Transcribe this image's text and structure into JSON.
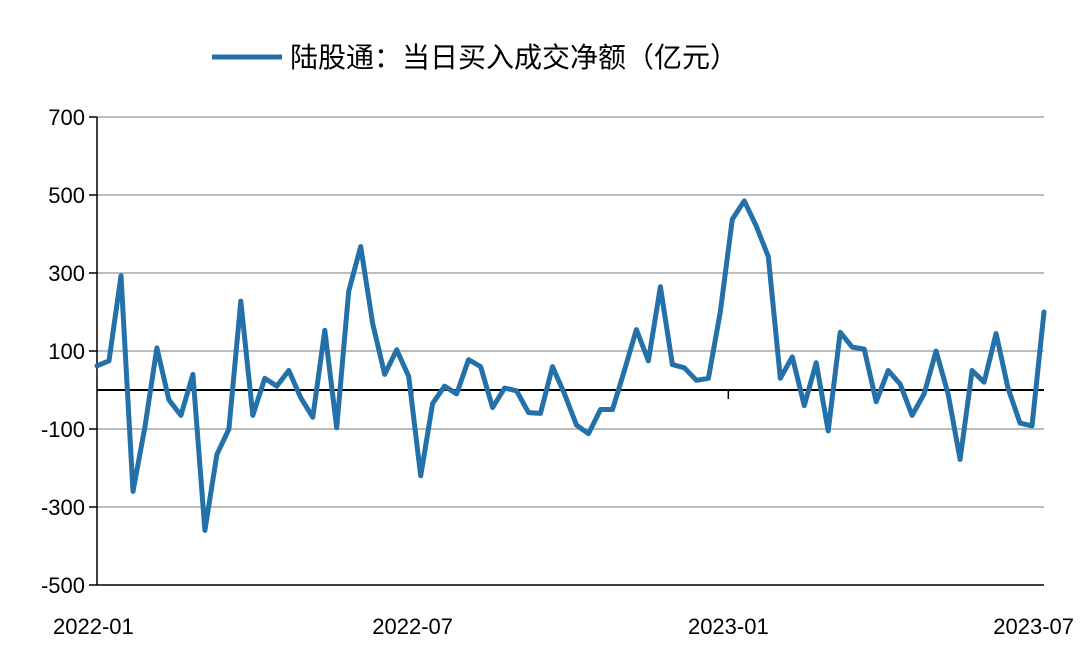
{
  "chart_data": {
    "type": "line",
    "title": "",
    "xlabel": "",
    "ylabel": "",
    "ylim": [
      -500,
      700
    ],
    "yticks": [
      -500,
      -300,
      -100,
      100,
      300,
      500,
      700
    ],
    "x_tick_labels": [
      "2022-01",
      "2022-07",
      "2023-01",
      "2023-07"
    ],
    "grid": true,
    "legend_position": "top-center",
    "colors": {
      "line": "#2470A8",
      "grid": "#A6A6A6",
      "zero": "#000000"
    },
    "series": [
      {
        "name": "陆股通：当日买入成交净额（亿元）",
        "values": [
          62,
          75,
          293,
          -260,
          -95,
          108,
          -25,
          -65,
          40,
          -360,
          -165,
          -100,
          228,
          -65,
          30,
          10,
          50,
          -20,
          -70,
          153,
          -97,
          253,
          368,
          170,
          40,
          103,
          35,
          -220,
          -35,
          10,
          -10,
          78,
          60,
          -45,
          5,
          -2,
          -58,
          -60,
          60,
          -10,
          -90,
          -112,
          -50,
          -50,
          50,
          155,
          75,
          265,
          65,
          57,
          25,
          30,
          200,
          438,
          485,
          420,
          342,
          30,
          85,
          -40,
          70,
          -105,
          148,
          110,
          105,
          -30,
          50,
          15,
          -65,
          -10,
          100,
          -10,
          -178,
          50,
          20,
          145,
          5,
          -85,
          -92,
          200
        ]
      }
    ]
  }
}
